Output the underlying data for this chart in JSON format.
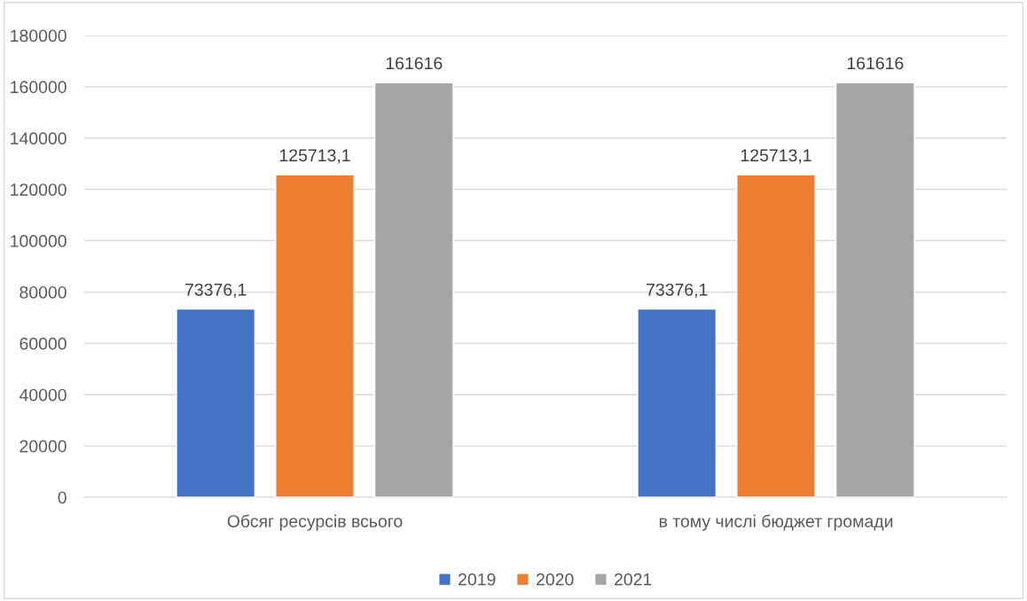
{
  "chart_data": {
    "type": "bar",
    "categories": [
      "Обсяг ресурсів всього",
      "в тому числі бюджет громади"
    ],
    "series": [
      {
        "name": "2019",
        "color": "#4472c4",
        "values": [
          73376.1,
          73376.1
        ],
        "value_labels": [
          "73376,1",
          "73376,1"
        ]
      },
      {
        "name": "2020",
        "color": "#ed7d31",
        "values": [
          125713.1,
          125713.1
        ],
        "value_labels": [
          "125713,1",
          "125713,1"
        ]
      },
      {
        "name": "2021",
        "color": "#a5a5a5",
        "values": [
          161616,
          161616
        ],
        "value_labels": [
          "161616",
          "161616"
        ]
      }
    ],
    "ylim": [
      0,
      180000
    ],
    "yticks": [
      0,
      20000,
      40000,
      60000,
      80000,
      100000,
      120000,
      140000,
      160000,
      180000
    ],
    "grid": "y",
    "legend": "bottom"
  }
}
